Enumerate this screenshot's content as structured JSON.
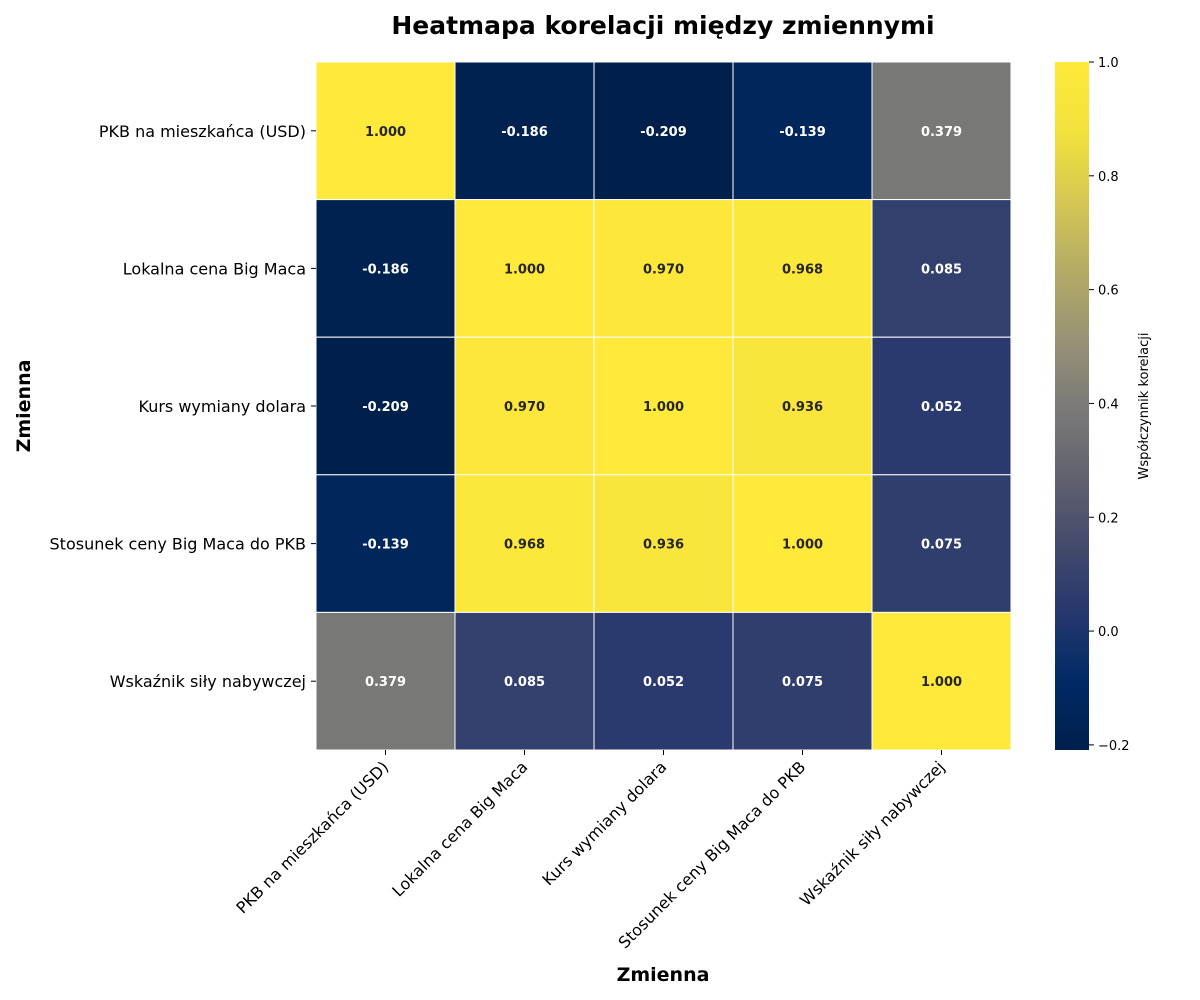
{
  "chart_data": {
    "type": "heatmap",
    "title": "Heatmapa korelacji między zmiennymi",
    "xlabel": "Zmienna",
    "ylabel": "Zmienna",
    "colorbar_label": "Współczynnik korelacji",
    "colormap": "cividis",
    "vmin": -0.209,
    "vmax": 1.0,
    "colorbar_ticks": [
      "−0.2",
      "0.0",
      "0.2",
      "0.4",
      "0.6",
      "0.8",
      "1.0"
    ],
    "colorbar_tick_values": [
      -0.2,
      0.0,
      0.2,
      0.4,
      0.6,
      0.8,
      1.0
    ],
    "x_categories": [
      "PKB na mieszkańca (USD)",
      "Lokalna cena Big Maca",
      "Kurs wymiany dolara",
      "Stosunek ceny Big Maca do PKB",
      "Wskaźnik siły nabywczej"
    ],
    "y_categories": [
      "PKB na mieszkańca (USD)",
      "Lokalna cena Big Maca",
      "Kurs wymiany dolara",
      "Stosunek ceny Big Maca do PKB",
      "Wskaźnik siły nabywczej"
    ],
    "values": [
      [
        1.0,
        -0.186,
        -0.209,
        -0.139,
        0.379
      ],
      [
        -0.186,
        1.0,
        0.97,
        0.968,
        0.085
      ],
      [
        -0.209,
        0.97,
        1.0,
        0.936,
        0.052
      ],
      [
        -0.139,
        0.968,
        0.936,
        1.0,
        0.075
      ],
      [
        0.379,
        0.085,
        0.052,
        0.075,
        1.0
      ]
    ],
    "cell_labels": [
      [
        "1.000",
        "-0.186",
        "-0.209",
        "-0.139",
        "0.379"
      ],
      [
        "-0.186",
        "1.000",
        "0.970",
        "0.968",
        "0.085"
      ],
      [
        "-0.209",
        "0.970",
        "1.000",
        "0.936",
        "0.052"
      ],
      [
        "-0.139",
        "0.968",
        "0.936",
        "1.000",
        "0.075"
      ],
      [
        "0.379",
        "0.085",
        "0.052",
        "0.075",
        "1.000"
      ]
    ],
    "grid": false,
    "legend": "colorbar-right"
  }
}
